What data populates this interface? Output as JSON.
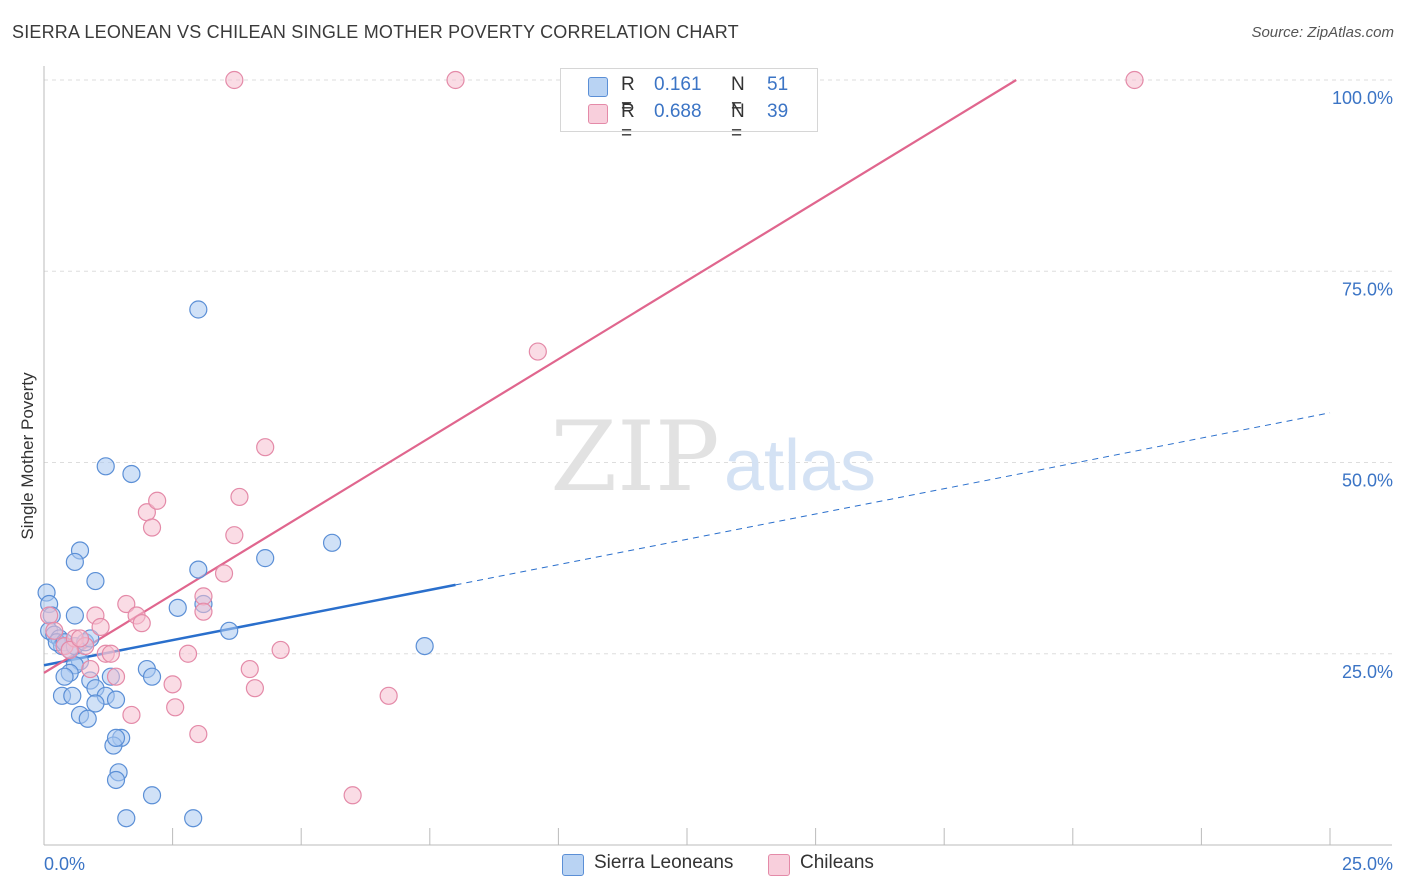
{
  "header": {
    "title": "SIERRA LEONEAN VS CHILEAN SINGLE MOTHER POVERTY CORRELATION CHART",
    "source": "Source: ZipAtlas.com"
  },
  "watermark": {
    "zip": "ZIP",
    "atlas": "atlas"
  },
  "legend_stats": [
    {
      "r_label": "R =",
      "r_value": "0.161",
      "n_label": "N =",
      "n_value": "51"
    },
    {
      "r_label": "R =",
      "r_value": "0.688",
      "n_label": "N =",
      "n_value": "39"
    }
  ],
  "legend_bottom": [
    {
      "label": "Sierra Leoneans"
    },
    {
      "label": "Chileans"
    }
  ],
  "colors": {
    "blue_fill": "#a9c8f0",
    "blue_stroke": "#5b8fd6",
    "blue_line": "#2a6fcc",
    "pink_fill": "#f6bfd0",
    "pink_stroke": "#e48aa8",
    "pink_line": "#e0668e",
    "tick_label": "#3b74c5",
    "grid": "#dddddd"
  },
  "chart_data": {
    "type": "scatter",
    "title": "SIERRA LEONEAN VS CHILEAN SINGLE MOTHER POVERTY CORRELATION CHART",
    "xlabel": "",
    "ylabel": "Single Mother Poverty",
    "xlim": [
      0,
      25
    ],
    "ylim": [
      0,
      100
    ],
    "x_tick_labels": [
      "0.0%",
      "25.0%"
    ],
    "y_ticks": [
      25,
      50,
      75,
      100
    ],
    "y_tick_labels": [
      "25.0%",
      "50.0%",
      "75.0%",
      "100.0%"
    ],
    "series": [
      {
        "name": "Sierra Leoneans",
        "r": 0.161,
        "n": 51,
        "trend": {
          "x0": 0,
          "y0": 23.5,
          "x1": 8,
          "y1": 34,
          "dashed_to_x": 25,
          "dashed_to_y": 56.5
        },
        "points": [
          [
            0.05,
            33
          ],
          [
            0.1,
            31.5
          ],
          [
            0.15,
            30
          ],
          [
            0.1,
            28
          ],
          [
            0.2,
            27.5
          ],
          [
            0.3,
            27
          ],
          [
            0.35,
            26
          ],
          [
            0.25,
            26.5
          ],
          [
            0.6,
            30
          ],
          [
            0.4,
            26.5
          ],
          [
            0.5,
            25.5
          ],
          [
            0.6,
            26
          ],
          [
            0.8,
            26.5
          ],
          [
            0.9,
            27
          ],
          [
            0.7,
            24
          ],
          [
            0.6,
            23.5
          ],
          [
            0.5,
            22.5
          ],
          [
            0.4,
            22
          ],
          [
            0.9,
            21.5
          ],
          [
            1.0,
            20.5
          ],
          [
            1.2,
            19.5
          ],
          [
            1.3,
            22
          ],
          [
            0.35,
            19.5
          ],
          [
            0.55,
            19.5
          ],
          [
            1.0,
            18.5
          ],
          [
            1.4,
            19
          ],
          [
            0.7,
            17
          ],
          [
            0.85,
            16.5
          ],
          [
            1.5,
            14
          ],
          [
            1.35,
            13
          ],
          [
            1.4,
            14
          ],
          [
            1.45,
            9.5
          ],
          [
            1.4,
            8.5
          ],
          [
            2.1,
            6.5
          ],
          [
            1.6,
            3.5
          ],
          [
            2.9,
            3.5
          ],
          [
            1.2,
            49.5
          ],
          [
            1.7,
            48.5
          ],
          [
            0.7,
            38.5
          ],
          [
            0.6,
            37
          ],
          [
            1.0,
            34.5
          ],
          [
            3.0,
            70
          ],
          [
            3.0,
            36
          ],
          [
            4.3,
            37.5
          ],
          [
            5.6,
            39.5
          ],
          [
            2.6,
            31
          ],
          [
            3.1,
            31.5
          ],
          [
            3.6,
            28
          ],
          [
            2.0,
            23
          ],
          [
            2.1,
            22
          ],
          [
            7.4,
            26
          ]
        ]
      },
      {
        "name": "Chileans",
        "r": 0.688,
        "n": 39,
        "trend": {
          "x0": 0,
          "y0": 22.5,
          "x1": 18.9,
          "y1": 100
        },
        "points": [
          [
            0.1,
            30
          ],
          [
            0.2,
            28
          ],
          [
            0.4,
            26
          ],
          [
            0.6,
            27
          ],
          [
            0.8,
            26
          ],
          [
            0.5,
            25.5
          ],
          [
            0.9,
            23
          ],
          [
            1.0,
            30
          ],
          [
            1.1,
            28.5
          ],
          [
            1.2,
            25
          ],
          [
            1.3,
            25
          ],
          [
            1.4,
            22
          ],
          [
            1.6,
            31.5
          ],
          [
            1.8,
            30
          ],
          [
            1.9,
            29
          ],
          [
            2.0,
            43.5
          ],
          [
            2.1,
            41.5
          ],
          [
            2.2,
            45
          ],
          [
            2.5,
            21
          ],
          [
            2.55,
            18
          ],
          [
            2.8,
            25
          ],
          [
            3.0,
            14.5
          ],
          [
            3.1,
            32.5
          ],
          [
            3.1,
            30.5
          ],
          [
            3.5,
            35.5
          ],
          [
            3.8,
            45.5
          ],
          [
            3.7,
            40.5
          ],
          [
            4.0,
            23
          ],
          [
            4.1,
            20.5
          ],
          [
            4.3,
            52
          ],
          [
            4.6,
            25.5
          ],
          [
            1.7,
            17
          ],
          [
            6.0,
            6.5
          ],
          [
            6.7,
            19.5
          ],
          [
            3.7,
            102.5
          ],
          [
            8.0,
            102.5
          ],
          [
            21.2,
            102.5
          ],
          [
            9.6,
            64.5
          ],
          [
            0.7,
            27
          ]
        ]
      }
    ]
  }
}
